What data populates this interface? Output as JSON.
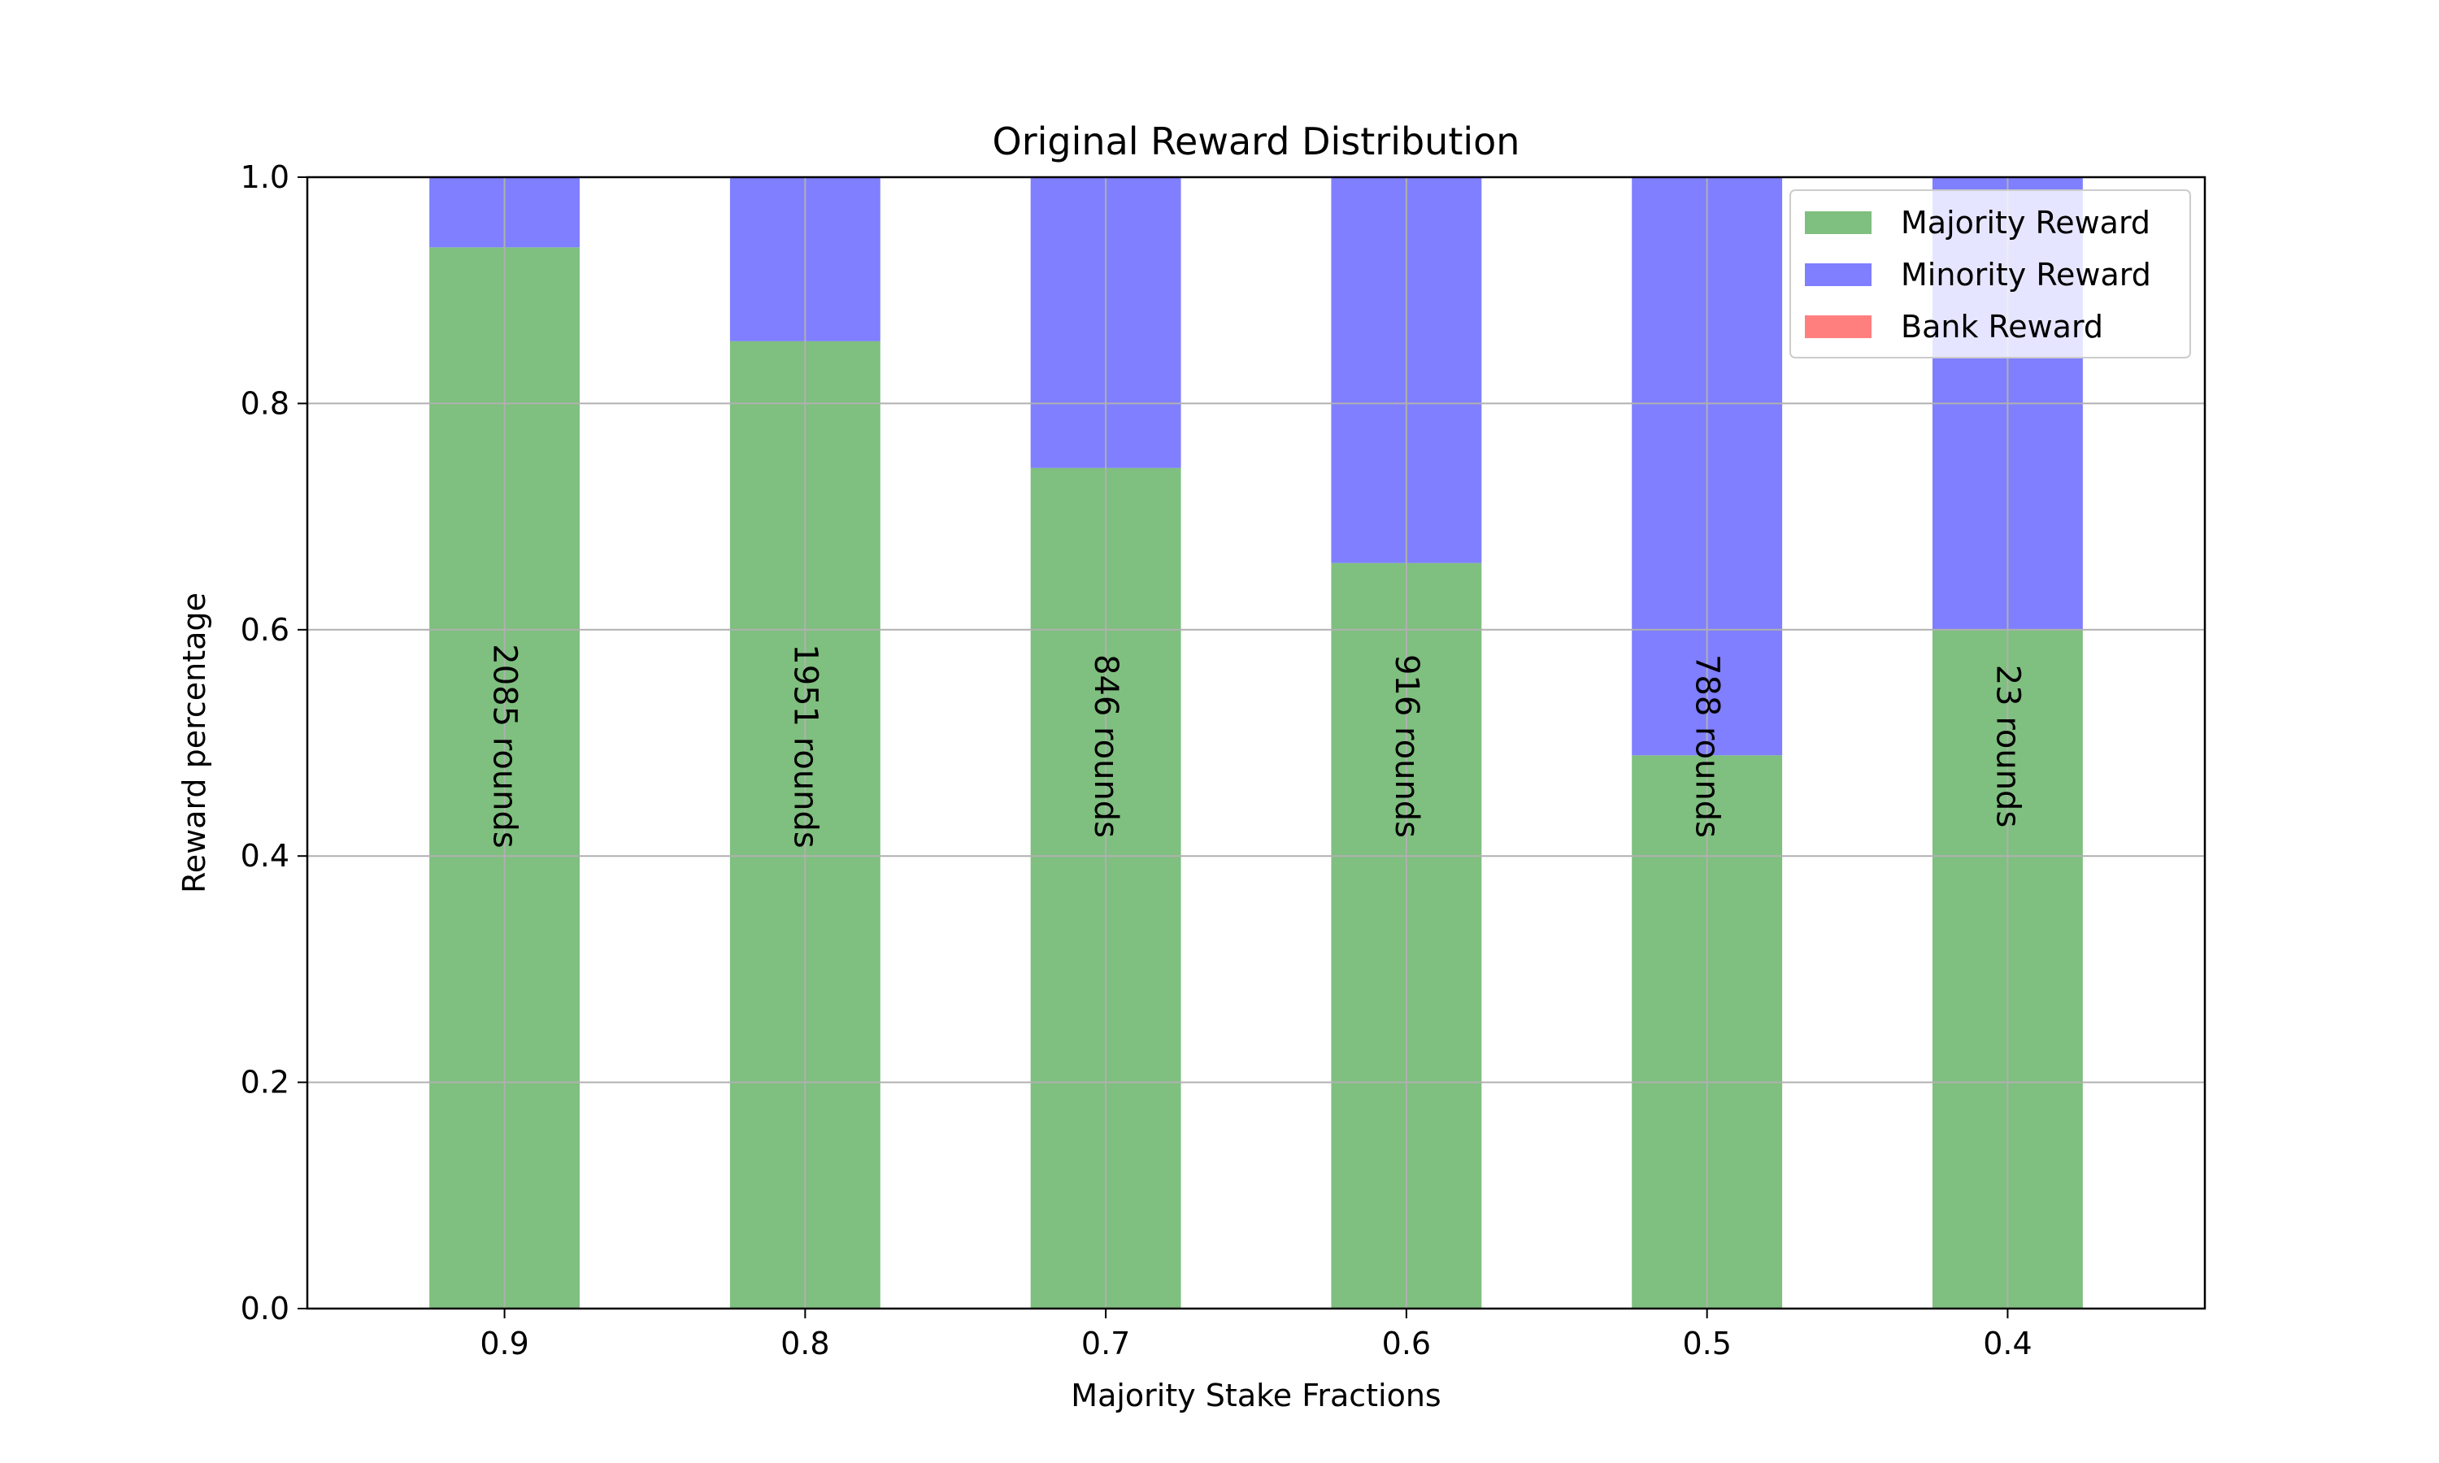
{
  "chart_data": {
    "type": "bar",
    "stacked": true,
    "title": "Original Reward Distribution",
    "xlabel": "Majority Stake Fractions",
    "ylabel": "Reward percentage",
    "categories": [
      "0.9",
      "0.8",
      "0.7",
      "0.6",
      "0.5",
      "0.4"
    ],
    "ylim": [
      0,
      1.0
    ],
    "yticks": [
      "0.0",
      "0.2",
      "0.4",
      "0.6",
      "0.8",
      "1.0"
    ],
    "grid": true,
    "legend_position": "top-right",
    "series": [
      {
        "name": "Majority Reward",
        "color": "#7fbf7f",
        "values": [
          0.938,
          0.855,
          0.743,
          0.659,
          0.489,
          0.6
        ]
      },
      {
        "name": "Minority Reward",
        "color": "#7f7fff",
        "values": [
          0.062,
          0.145,
          0.257,
          0.341,
          0.511,
          0.4
        ]
      },
      {
        "name": "Bank Reward",
        "color": "#ff7f7f",
        "values": [
          0,
          0,
          0,
          0,
          0,
          0
        ]
      }
    ],
    "annotations": [
      "2085 rounds",
      "1951 rounds",
      "846 rounds",
      "916 rounds",
      "788 rounds",
      "23 rounds"
    ]
  }
}
